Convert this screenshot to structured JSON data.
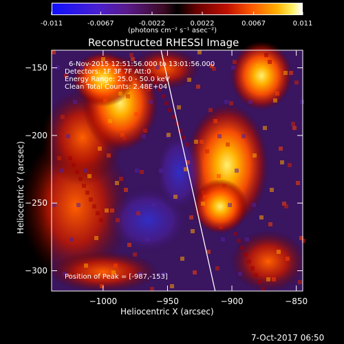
{
  "colorbar": {
    "tick_labels": [
      "-0.011",
      "-0.0067",
      "-0.0022",
      "0.0022",
      "0.0067",
      "0.011"
    ],
    "tick_values": [
      -0.011,
      -0.0067,
      -0.0022,
      0.0022,
      0.0067,
      0.011
    ],
    "range": [
      -0.011,
      0.011
    ],
    "unit_label": "(photons cm⁻² s⁻¹ asec⁻²)"
  },
  "chart_data": {
    "type": "heatmap",
    "title": "Reconstructed RHESSI Image",
    "xlabel": "Heliocentric X (arcsec)",
    "ylabel": "Heliocentric Y (arcsec)",
    "xlim": [
      -1040,
      -845
    ],
    "ylim": [
      -315,
      -137
    ],
    "x_ticks": [
      -1000,
      -950,
      -900,
      -850
    ],
    "x_tick_labels": [
      "−1000",
      "−950",
      "−900",
      "−850"
    ],
    "y_ticks": [
      -150,
      -200,
      -250,
      -300
    ],
    "y_tick_labels": [
      "−150",
      "−200",
      "−250",
      "−300"
    ],
    "limb_line": [
      [
        -955,
        -137
      ],
      [
        -913,
        -315
      ]
    ],
    "peak": [
      -987,
      -153
    ],
    "info_lines": [
      "6-Nov-2015 12:51:56.000 to 13:01:56.000",
      "Detectors: 1F 3F 7F  Att:0",
      "Energy Range: 25.0 - 50.0 keV",
      "Clean    Total Counts: 2.48E+04"
    ],
    "peak_label": "Position of Peak = [-987,-153]"
  },
  "footer": {
    "timestamp": "7-Oct-2017 06:50"
  }
}
